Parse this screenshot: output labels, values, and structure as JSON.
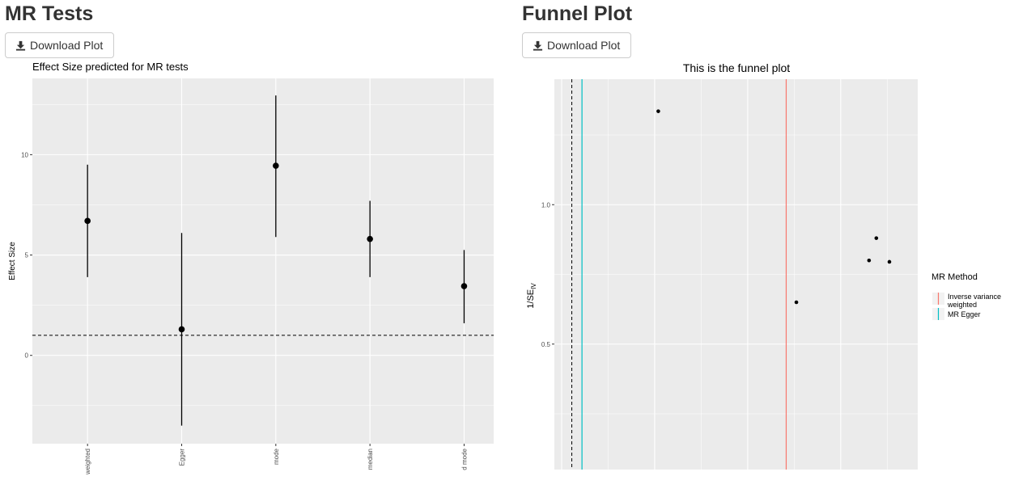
{
  "left_panel": {
    "title": "MR Tests",
    "download_label": "Download Plot"
  },
  "right_panel": {
    "title": "Funnel Plot",
    "download_label": "Download Plot"
  },
  "colors": {
    "panel_bg": "#ebebeb",
    "gridline": "#ffffff",
    "point": "#000000",
    "ivw_line": "#f8766d",
    "egger_line": "#00bfc4"
  },
  "chart_data": [
    {
      "type": "scatter",
      "subtype": "point-range",
      "title": "Effect Size predicted for MR tests",
      "xlabel": "",
      "ylabel": "Effect Size",
      "categories": [
        "weighted",
        "Egger",
        "mode",
        "median",
        "d mode"
      ],
      "values": [
        6.7,
        1.3,
        9.45,
        5.8,
        3.45
      ],
      "lower": [
        3.9,
        -3.5,
        5.9,
        3.9,
        1.6
      ],
      "upper": [
        9.5,
        6.1,
        12.95,
        7.7,
        5.25
      ],
      "reference_line": 1.0,
      "yticks": [
        0,
        5,
        10
      ],
      "ylim": [
        -4.4,
        13.8
      ],
      "grid": true
    },
    {
      "type": "scatter",
      "subtype": "funnel",
      "title": "This is the funnel plot",
      "xlabel": "",
      "ylabel": "1/SE",
      "ylabel_subscript": "IV",
      "yticks": [
        0.5,
        1.0
      ],
      "ylim": [
        0.05,
        1.45
      ],
      "xlim": [
        0,
        100
      ],
      "points": [
        {
          "x": 28.6,
          "y": 1.335
        },
        {
          "x": 66.6,
          "y": 0.65
        },
        {
          "x": 86.6,
          "y": 0.8
        },
        {
          "x": 88.6,
          "y": 0.88
        },
        {
          "x": 92.2,
          "y": 0.795
        }
      ],
      "zero_line_x": 4.8,
      "method_lines": [
        {
          "name": "Inverse variance\nweighted",
          "label_line1": "Inverse variance",
          "label_line2": " weighted",
          "x": 63.8
        },
        {
          "name": "MR Egger",
          "label_line1": "MR Egger",
          "x": 7.6
        }
      ],
      "legend": {
        "title": "MR Method",
        "position": "right"
      },
      "grid": true
    }
  ]
}
